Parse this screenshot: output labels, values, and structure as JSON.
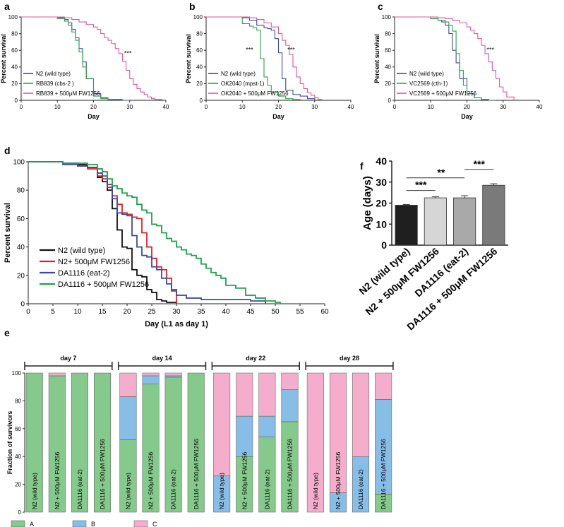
{
  "panel_letters": [
    "a",
    "b",
    "c",
    "d",
    "f",
    "e"
  ],
  "colors": {
    "blue": "#3a4aa6",
    "green": "#2e9e49",
    "pink": "#e0559a",
    "red": "#e21f26",
    "dgreen": "#1fa14a",
    "black": "#111111",
    "stackA": "#86c98c",
    "stackB": "#88bde6",
    "stackC": "#f4aecb"
  },
  "chart_data": [
    {
      "id": "a",
      "type": "line",
      "xlabel": "Day",
      "ylabel": "Percent survival",
      "xlim": [
        0,
        40
      ],
      "ylim": [
        0,
        100
      ],
      "xticks": [
        0,
        10,
        20,
        30,
        40
      ],
      "yticks": [
        0,
        20,
        40,
        60,
        80,
        100
      ],
      "annotation": "***",
      "annotation_at": [
        29.5,
        54
      ],
      "series": [
        {
          "name": "N2 (wild type)",
          "color": "blue",
          "x": [
            0,
            10,
            12,
            13,
            14,
            15,
            16,
            17,
            18,
            20,
            22,
            24,
            26,
            28,
            30
          ],
          "y": [
            100,
            99,
            97,
            93,
            85,
            75,
            62,
            46,
            26,
            8,
            3,
            1,
            1,
            0,
            0
          ]
        },
        {
          "name": "RB839 (cbs-2 )",
          "color": "green",
          "x": [
            0,
            10,
            12,
            13,
            14,
            15,
            16,
            17,
            18,
            20,
            22,
            24,
            26,
            28
          ],
          "y": [
            100,
            98,
            95,
            90,
            82,
            72,
            58,
            40,
            26,
            5,
            2,
            1,
            1,
            0
          ]
        },
        {
          "name": "RB839 + 500μM FW1256",
          "color": "pink",
          "x": [
            0,
            12,
            14,
            16,
            18,
            20,
            21,
            22,
            23,
            24,
            25,
            26,
            27,
            28,
            29,
            30,
            31,
            32,
            33,
            34,
            35,
            36,
            37,
            39
          ],
          "y": [
            100,
            99,
            97,
            94,
            91,
            88,
            85,
            80,
            75,
            72,
            68,
            62,
            56,
            47,
            36,
            26,
            19,
            14,
            10,
            7,
            4,
            2,
            1,
            0
          ]
        }
      ]
    },
    {
      "id": "b",
      "type": "line",
      "xlabel": "Day",
      "ylabel": "Percent survival",
      "xlim": [
        0,
        40
      ],
      "ylim": [
        0,
        100
      ],
      "xticks": [
        0,
        10,
        20,
        30,
        40
      ],
      "yticks": [
        0,
        20,
        40,
        60,
        80,
        100
      ],
      "annotations": [
        {
          "text": "***",
          "at": [
            12,
            58
          ]
        },
        {
          "text": "***",
          "at": [
            23.5,
            58
          ]
        }
      ],
      "series": [
        {
          "name": "N2 (wild type)",
          "color": "blue",
          "x": [
            0,
            10,
            12,
            14,
            16,
            17,
            18,
            19,
            20,
            21,
            22,
            24,
            26,
            28,
            30
          ],
          "y": [
            100,
            99,
            96,
            90,
            87,
            86,
            84,
            74,
            57,
            26,
            12,
            7,
            5,
            2,
            0
          ]
        },
        {
          "name": "OK2040 (mpst-1)",
          "color": "green",
          "x": [
            0,
            10,
            12,
            13,
            14,
            15,
            16,
            17,
            18,
            20,
            22,
            24,
            26
          ],
          "y": [
            100,
            92,
            89,
            87,
            84,
            50,
            28,
            18,
            10,
            5,
            2,
            1,
            0
          ]
        },
        {
          "name": "OK2040 + 500μM FW1256",
          "color": "pink",
          "x": [
            0,
            12,
            14,
            16,
            18,
            20,
            21,
            22,
            23,
            24,
            25,
            26,
            27,
            28,
            29,
            30,
            31,
            32
          ],
          "y": [
            100,
            99,
            97,
            93,
            88,
            80,
            72,
            66,
            55,
            40,
            28,
            20,
            14,
            9,
            6,
            3,
            1,
            0
          ]
        }
      ]
    },
    {
      "id": "c",
      "type": "line",
      "xlabel": "Day",
      "ylabel": "Percent survival",
      "xlim": [
        0,
        40
      ],
      "ylim": [
        0,
        100
      ],
      "xticks": [
        0,
        10,
        20,
        30,
        40
      ],
      "yticks": [
        0,
        20,
        40,
        60,
        80,
        100
      ],
      "annotation": "***",
      "annotation_at": [
        26.5,
        58
      ],
      "series": [
        {
          "name": "N2 (wild type)",
          "color": "blue",
          "x": [
            0,
            10,
            12,
            13,
            14,
            15,
            16,
            17,
            18,
            20,
            22,
            24,
            26,
            28
          ],
          "y": [
            100,
            98,
            96,
            94,
            90,
            80,
            60,
            45,
            26,
            8,
            3,
            1,
            0,
            0
          ]
        },
        {
          "name": "VC2569 (cth-1)",
          "color": "green",
          "x": [
            0,
            10,
            12,
            14,
            15,
            16,
            17,
            18,
            19,
            20,
            22,
            24,
            26
          ],
          "y": [
            100,
            98,
            96,
            94,
            90,
            83,
            56,
            36,
            18,
            8,
            3,
            1,
            0
          ]
        },
        {
          "name": "VC2569 + 500μM FW1256",
          "color": "pink",
          "x": [
            0,
            12,
            14,
            16,
            18,
            20,
            21,
            22,
            23,
            24,
            25,
            26,
            27,
            28,
            29,
            30,
            31,
            33
          ],
          "y": [
            100,
            99,
            98,
            96,
            93,
            88,
            84,
            80,
            74,
            66,
            56,
            46,
            36,
            26,
            16,
            10,
            4,
            0
          ]
        }
      ]
    },
    {
      "id": "d",
      "type": "line",
      "xlabel": "Day (L1 as day 1)",
      "ylabel": "Percent survival",
      "xlim": [
        0,
        60
      ],
      "ylim": [
        0,
        100
      ],
      "xticks": [
        0,
        5,
        10,
        15,
        20,
        25,
        30,
        35,
        40,
        45,
        50,
        55,
        60
      ],
      "yticks": [
        0,
        20,
        40,
        60,
        80,
        100
      ],
      "series": [
        {
          "name": "N2 (wild type)",
          "color": "black",
          "x": [
            0,
            7,
            10,
            12,
            14,
            15,
            16,
            17,
            18,
            19,
            20,
            21,
            22,
            23,
            24,
            25,
            26,
            27,
            28,
            30
          ],
          "y": [
            100,
            99,
            98,
            96,
            89,
            86,
            80,
            67,
            52,
            40,
            39,
            24,
            20,
            19,
            10,
            8,
            3,
            2,
            1,
            0
          ]
        },
        {
          "name": "N2+ 500μM FW1256",
          "color": "red",
          "x": [
            0,
            7,
            10,
            12,
            14,
            15,
            16,
            17,
            18,
            19,
            20,
            21,
            22,
            23,
            24,
            25,
            26,
            27,
            28,
            29,
            30
          ],
          "y": [
            100,
            99,
            97,
            95,
            90,
            88,
            82,
            76,
            70,
            64,
            63,
            61,
            60,
            50,
            40,
            32,
            26,
            24,
            18,
            10,
            0
          ]
        },
        {
          "name": "DA1116 (eat-2)",
          "color": "blue",
          "x": [
            0,
            7,
            10,
            12,
            14,
            15,
            16,
            17,
            18,
            19,
            20,
            21,
            22,
            23,
            24,
            25,
            26,
            27,
            28,
            29,
            30,
            32,
            35,
            40,
            45,
            48
          ],
          "y": [
            100,
            98,
            97,
            96,
            92,
            90,
            84,
            74,
            64,
            63,
            62,
            48,
            40,
            34,
            33,
            26,
            24,
            18,
            14,
            9,
            6,
            4,
            3,
            3,
            2,
            0
          ]
        },
        {
          "name": "DA1116 + 500μM FW1256",
          "color": "dgreen",
          "x": [
            0,
            7,
            10,
            12,
            14,
            15,
            16,
            17,
            18,
            19,
            20,
            21,
            22,
            23,
            24,
            25,
            26,
            27,
            28,
            29,
            30,
            31,
            32,
            33,
            34,
            35,
            36,
            37,
            38,
            39,
            40,
            42,
            44,
            46,
            48,
            50,
            51
          ],
          "y": [
            100,
            99,
            99,
            98,
            95,
            93,
            88,
            83,
            81,
            78,
            76,
            75,
            70,
            66,
            64,
            56,
            55,
            50,
            46,
            44,
            40,
            38,
            35,
            34,
            32,
            28,
            25,
            22,
            20,
            18,
            13,
            11,
            6,
            4,
            2,
            1,
            0
          ]
        }
      ]
    },
    {
      "id": "f",
      "type": "bar",
      "ylabel": "Age (days)",
      "ylim": [
        0,
        40
      ],
      "yticks": [
        0,
        10,
        20,
        30,
        40
      ],
      "categories": [
        "N2 (wild type)",
        "N2 + 500μM FW1256",
        "DA1116 (eat-2)",
        "DA1116 + 500μM FW1256"
      ],
      "values": [
        19,
        22.5,
        22.5,
        28.5
      ],
      "errors": [
        0.3,
        0.5,
        1.0,
        0.7
      ],
      "bar_colors": [
        "#1f1f1f",
        "#d6d6d6",
        "#a9a9a9",
        "#7a7a7a"
      ],
      "significance": [
        {
          "from": 0,
          "to": 1,
          "label": "***",
          "y": 26
        },
        {
          "from": 0,
          "to": 2,
          "label": "**",
          "y": 32
        },
        {
          "from": 2,
          "to": 3,
          "label": "***",
          "y": 36
        }
      ]
    },
    {
      "id": "e",
      "type": "bar",
      "stacked": true,
      "ylabel": "Fraction of survivors",
      "ylim": [
        0,
        100
      ],
      "yticks": [
        0,
        20,
        40,
        60,
        80,
        100
      ],
      "groups": [
        "day 7",
        "day 14",
        "day 22",
        "day 28"
      ],
      "bar_labels": [
        "N2 (wild type)",
        "N2 + 500μM FW1256",
        "DA1116 (eat-2)",
        "DA1116 + 500μM FW1256"
      ],
      "legend": [
        "A",
        "B",
        "C"
      ],
      "series": [
        {
          "name": "A",
          "color": "stackA",
          "values": [
            100,
            98,
            100,
            100,
            52,
            92,
            97,
            100,
            0,
            40,
            54,
            65,
            0,
            0,
            0,
            13
          ]
        },
        {
          "name": "B",
          "color": "stackB",
          "values": [
            0,
            0,
            0,
            0,
            31,
            6,
            1,
            0,
            26,
            29,
            15,
            23,
            0,
            14,
            40,
            68
          ]
        },
        {
          "name": "C",
          "color": "stackC",
          "values": [
            0,
            2,
            0,
            0,
            17,
            2,
            2,
            0,
            74,
            31,
            31,
            12,
            100,
            86,
            60,
            19
          ]
        }
      ]
    }
  ]
}
